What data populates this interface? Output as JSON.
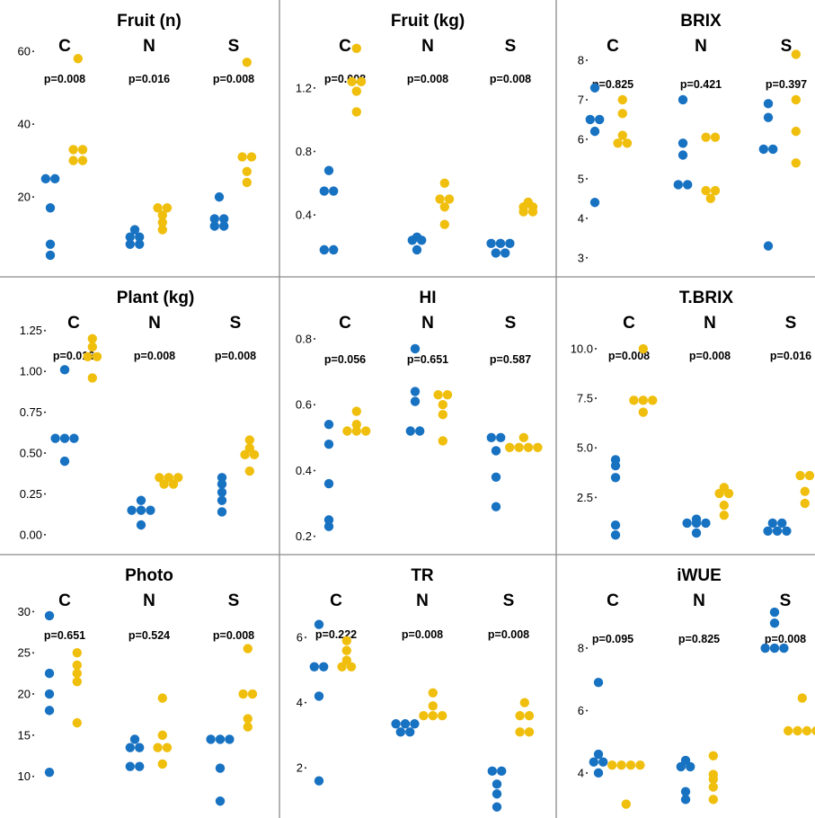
{
  "colors": {
    "blue": "#1872c2",
    "yellow": "#f0bf0d",
    "divider": "#8a8a8a"
  },
  "chart_data": [
    {
      "type": "scatter",
      "title": "Fruit (n)",
      "groups": [
        "C",
        "N",
        "S"
      ],
      "pvalues": [
        "p=0.008",
        "p=0.016",
        "p=0.008"
      ],
      "yticks": [
        20,
        40,
        60
      ],
      "ytick_labels": [
        "20",
        "40",
        "60"
      ],
      "ylim": [
        2,
        63
      ],
      "series": [
        {
          "color": "blue",
          "values": [
            [
              25,
              25,
              17,
              7,
              4
            ],
            [
              11,
              9,
              9,
              7,
              7
            ],
            [
              20,
              14,
              14,
              12,
              12
            ]
          ]
        },
        {
          "color": "yellow",
          "values": [
            [
              58,
              33,
              33,
              30,
              30
            ],
            [
              17,
              17,
              15,
              13,
              11
            ],
            [
              57,
              31,
              31,
              27,
              24
            ]
          ]
        }
      ]
    },
    {
      "type": "scatter",
      "title": "Fruit (kg)",
      "groups": [
        "C",
        "N",
        "S"
      ],
      "pvalues": [
        "p=0.008",
        "p=0.008",
        "p=0.008"
      ],
      "yticks": [
        0.4,
        0.8,
        1.2
      ],
      "ytick_labels": [
        "0.4",
        "0.8",
        "1.2"
      ],
      "ylim": [
        0.1,
        1.5
      ],
      "series": [
        {
          "color": "blue",
          "values": [
            [
              0.68,
              0.55,
              0.55,
              0.18,
              0.18
            ],
            [
              0.26,
              0.24,
              0.24,
              0.18
            ],
            [
              0.22,
              0.22,
              0.22,
              0.16,
              0.16
            ]
          ]
        },
        {
          "color": "yellow",
          "values": [
            [
              1.45,
              1.24,
              1.24,
              1.18,
              1.05
            ],
            [
              0.6,
              0.5,
              0.5,
              0.45,
              0.34
            ],
            [
              0.48,
              0.45,
              0.45,
              0.42,
              0.42
            ]
          ]
        }
      ]
    },
    {
      "type": "scatter",
      "title": "BRIX",
      "groups": [
        "C",
        "N",
        "S"
      ],
      "pvalues": [
        "p=0.825",
        "p=0.421",
        "p=0.397"
      ],
      "yticks": [
        3,
        4,
        5,
        6,
        7,
        8
      ],
      "ytick_labels": [
        "3",
        "4",
        "5",
        "6",
        "7",
        "8"
      ],
      "ylim": [
        2.7,
        8.5
      ],
      "series": [
        {
          "color": "blue",
          "values": [
            [
              7.3,
              6.5,
              6.5,
              6.2,
              4.4
            ],
            [
              7.0,
              5.9,
              5.6,
              4.85,
              4.85
            ],
            [
              6.9,
              6.55,
              5.75,
              5.75,
              3.3
            ]
          ]
        },
        {
          "color": "yellow",
          "values": [
            [
              7.0,
              6.65,
              6.1,
              5.9,
              5.9
            ],
            [
              6.05,
              6.05,
              4.7,
              4.7,
              4.5
            ],
            [
              8.15,
              7.0,
              6.2,
              5.4
            ]
          ]
        }
      ]
    },
    {
      "type": "scatter",
      "title": "Plant (kg)",
      "groups": [
        "C",
        "N",
        "S"
      ],
      "pvalues": [
        "p=0.016",
        "p=0.008",
        "p=0.008"
      ],
      "yticks": [
        0.0,
        0.25,
        0.5,
        0.75,
        1.0,
        1.25
      ],
      "ytick_labels": [
        "0.00",
        "0.25",
        "0.50",
        "0.75",
        "1.00",
        "1.25"
      ],
      "ylim": [
        -0.05,
        1.32
      ],
      "series": [
        {
          "color": "blue",
          "values": [
            [
              1.01,
              0.59,
              0.59,
              0.59,
              0.45
            ],
            [
              0.21,
              0.15,
              0.15,
              0.15,
              0.06
            ],
            [
              0.35,
              0.31,
              0.26,
              0.21,
              0.14
            ]
          ]
        },
        {
          "color": "yellow",
          "values": [
            [
              1.2,
              1.15,
              1.09,
              1.09,
              0.96
            ],
            [
              0.35,
              0.35,
              0.35,
              0.31,
              0.31
            ],
            [
              0.58,
              0.53,
              0.49,
              0.49,
              0.39
            ]
          ]
        }
      ]
    },
    {
      "type": "scatter",
      "title": "HI",
      "groups": [
        "C",
        "N",
        "S"
      ],
      "pvalues": [
        "p=0.056",
        "p=0.651",
        "p=0.587"
      ],
      "yticks": [
        0.2,
        0.4,
        0.6,
        0.8
      ],
      "ytick_labels": [
        "0.2",
        "0.4",
        "0.6",
        "0.8"
      ],
      "ylim": [
        0.18,
        0.86
      ],
      "series": [
        {
          "color": "blue",
          "values": [
            [
              0.54,
              0.48,
              0.36,
              0.25,
              0.23
            ],
            [
              0.77,
              0.64,
              0.61,
              0.52,
              0.52
            ],
            [
              0.5,
              0.5,
              0.46,
              0.38,
              0.29
            ]
          ]
        },
        {
          "color": "yellow",
          "values": [
            [
              0.58,
              0.54,
              0.52,
              0.52,
              0.52
            ],
            [
              0.63,
              0.63,
              0.6,
              0.57,
              0.49
            ],
            [
              0.5,
              0.47,
              0.47,
              0.47,
              0.47
            ]
          ]
        }
      ]
    },
    {
      "type": "scatter",
      "title": "T.BRIX",
      "groups": [
        "C",
        "N",
        "S"
      ],
      "pvalues": [
        "p=0.008",
        "p=0.008",
        "p=0.016"
      ],
      "yticks": [
        2.5,
        5.0,
        7.5,
        10.0
      ],
      "ytick_labels": [
        "2.5",
        "5.0",
        "7.5",
        "10.0"
      ],
      "ylim": [
        0.2,
        11.5
      ],
      "series": [
        {
          "color": "blue",
          "values": [
            [
              4.4,
              4.1,
              3.5,
              1.1,
              0.6
            ],
            [
              1.4,
              1.2,
              1.2,
              1.2,
              0.7
            ],
            [
              1.2,
              1.2,
              0.8,
              0.8,
              0.8
            ]
          ]
        },
        {
          "color": "yellow",
          "values": [
            [
              10.0,
              7.4,
              7.4,
              7.4,
              6.8
            ],
            [
              3.0,
              2.7,
              2.7,
              2.1,
              1.6
            ],
            [
              3.6,
              3.6,
              2.8,
              2.2
            ]
          ]
        }
      ]
    },
    {
      "type": "scatter",
      "title": "Photo",
      "groups": [
        "C",
        "N",
        "S"
      ],
      "pvalues": [
        "p=0.651",
        "p=0.524",
        "p=0.008"
      ],
      "yticks": [
        10,
        15,
        20,
        25,
        30
      ],
      "ytick_labels": [
        "10",
        "15",
        "20",
        "25",
        "30"
      ],
      "ylim": [
        5.5,
        32
      ],
      "series": [
        {
          "color": "blue",
          "values": [
            [
              29.5,
              22.5,
              20.0,
              18.0,
              10.5
            ],
            [
              14.5,
              13.5,
              13.5,
              11.2,
              11.2
            ],
            [
              14.5,
              14.5,
              14.5,
              11.0,
              7.0
            ]
          ]
        },
        {
          "color": "yellow",
          "values": [
            [
              25.0,
              23.5,
              22.5,
              21.5,
              16.5
            ],
            [
              19.5,
              15.0,
              13.5,
              13.5,
              11.5
            ],
            [
              25.5,
              20.0,
              20.0,
              17.0,
              16.0
            ]
          ]
        }
      ]
    },
    {
      "type": "scatter",
      "title": "TR",
      "groups": [
        "C",
        "N",
        "S"
      ],
      "pvalues": [
        "p=0.222",
        "p=0.008",
        "p=0.008"
      ],
      "yticks": [
        2,
        4,
        6
      ],
      "ytick_labels": [
        "2",
        "4",
        "6"
      ],
      "ylim": [
        0.6,
        7.3
      ],
      "series": [
        {
          "color": "blue",
          "values": [
            [
              6.4,
              5.1,
              5.1,
              4.2,
              1.6
            ],
            [
              3.35,
              3.35,
              3.35,
              3.1,
              3.1
            ],
            [
              1.9,
              1.9,
              1.5,
              1.2,
              0.8
            ]
          ]
        },
        {
          "color": "yellow",
          "values": [
            [
              5.9,
              5.6,
              5.3,
              5.1,
              5.1
            ],
            [
              4.3,
              3.9,
              3.6,
              3.6,
              3.6
            ],
            [
              4.0,
              3.6,
              3.6,
              3.1,
              3.1
            ]
          ]
        }
      ]
    },
    {
      "type": "scatter",
      "title": "iWUE",
      "groups": [
        "C",
        "N",
        "S"
      ],
      "pvalues": [
        "p=0.095",
        "p=0.825",
        "p=0.008"
      ],
      "yticks": [
        4,
        6,
        8
      ],
      "ytick_labels": [
        "4",
        "6",
        "8"
      ],
      "ylim": [
        2.7,
        9.7
      ],
      "series": [
        {
          "color": "blue",
          "values": [
            [
              6.9,
              4.6,
              4.35,
              4.35,
              4.0
            ],
            [
              4.4,
              4.2,
              4.2,
              3.4,
              3.15
            ],
            [
              9.15,
              8.8,
              8.0,
              8.0,
              8.0
            ]
          ]
        },
        {
          "color": "yellow",
          "values": [
            [
              4.25,
              4.25,
              4.25,
              4.25,
              3.0
            ],
            [
              4.55,
              3.95,
              3.8,
              3.55,
              3.15
            ],
            [
              6.4,
              5.35,
              5.35,
              5.35,
              5.35
            ]
          ]
        }
      ]
    }
  ]
}
